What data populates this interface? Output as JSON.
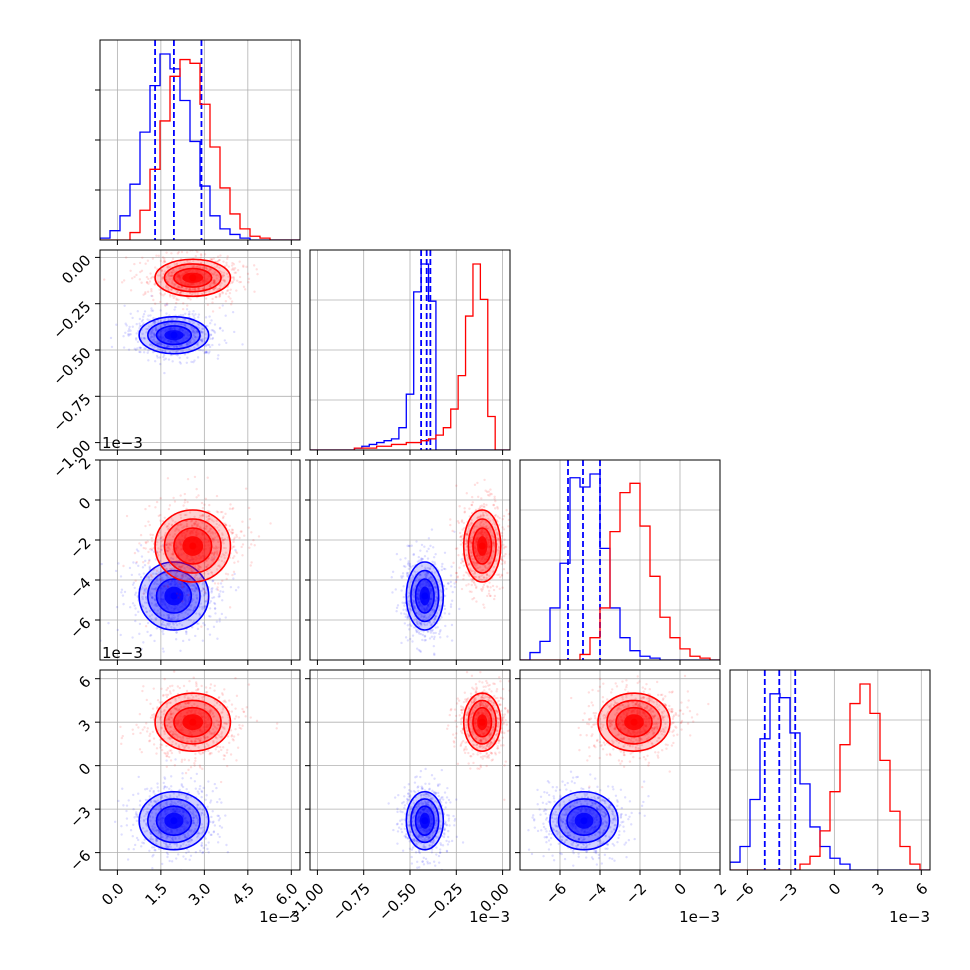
{
  "chart_data": {
    "type": "scatter",
    "title": "",
    "style": {
      "grid": true,
      "legend": "none"
    },
    "colors": {
      "series_a": "#0000ff",
      "series_b": "#ff0000"
    },
    "axes_scale_label": "1e−3",
    "parameters": [
      {
        "range": [
          -0.6,
          6.3
        ],
        "ticks": [
          0.0,
          1.5,
          3.0,
          4.5,
          6.0
        ],
        "labels": [
          "0.0",
          "1.5",
          "3.0",
          "4.5",
          "6.0"
        ]
      },
      {
        "range": [
          -1.04,
          0.04
        ],
        "ticks": [
          -1.0,
          -0.75,
          -0.5,
          -0.25,
          0.0
        ],
        "labels": [
          "−1.00",
          "−0.75",
          "−0.50",
          "−0.25",
          "0.00"
        ]
      },
      {
        "range": [
          -8.0,
          2.0
        ],
        "ticks": [
          -6,
          -4,
          -2,
          0,
          2
        ],
        "labels": [
          "−6",
          "−4",
          "−2",
          "0",
          "2"
        ]
      },
      {
        "range": [
          -7.2,
          6.6
        ],
        "ticks": [
          -6,
          -3,
          0,
          3,
          6
        ],
        "labels": [
          "−6",
          "−3",
          "0",
          "3",
          "6"
        ]
      }
    ],
    "series": [
      {
        "color": "#0000ff",
        "marginal_quantiles": [
          [
            1.3,
            1.95,
            2.9
          ],
          [
            -0.44,
            -0.41,
            -0.39
          ],
          [
            -5.6,
            -4.85,
            -4.0
          ],
          [
            -4.8,
            -3.8,
            -2.7
          ]
        ],
        "modes": [
          1.95,
          -0.42,
          -4.8,
          -3.8
        ],
        "spread": [
          0.6,
          0.05,
          0.85,
          1.0
        ],
        "histograms": [
          [
            0.01,
            0.05,
            0.13,
            0.3,
            0.58,
            0.83,
            1.0,
            0.92,
            0.75,
            0.53,
            0.29,
            0.13,
            0.06,
            0.03,
            0.01,
            0,
            0,
            0,
            0,
            0
          ],
          [
            0,
            0,
            0,
            0,
            0,
            0,
            0.01,
            0.02,
            0.03,
            0.04,
            0.05,
            0.06,
            0.12,
            0.3,
            0.85,
            1.0,
            0.8,
            0,
            0,
            0,
            0,
            0,
            0,
            0,
            0,
            0,
            0
          ],
          [
            0,
            0.04,
            0.1,
            0.28,
            0.52,
            0.98,
            0.93,
            1.0,
            0.6,
            0.28,
            0.12,
            0.05,
            0.02,
            0.01,
            0,
            0,
            0,
            0,
            0,
            0
          ],
          [
            0.04,
            0.12,
            0.36,
            0.67,
            0.9,
            0.88,
            0.7,
            0.44,
            0.22,
            0.12,
            0.06,
            0.03,
            0,
            0,
            0,
            0,
            0,
            0,
            0,
            0
          ]
        ]
      },
      {
        "color": "#ff0000",
        "marginal_quantiles": [],
        "modes": [
          2.6,
          -0.11,
          -2.3,
          3.0
        ],
        "spread": [
          0.65,
          0.05,
          0.9,
          1.0
        ],
        "histograms": [
          [
            0,
            0,
            0,
            0.04,
            0.16,
            0.38,
            0.64,
            0.88,
            0.97,
            0.95,
            0.73,
            0.5,
            0.28,
            0.14,
            0.06,
            0.02,
            0.01,
            0,
            0,
            0
          ],
          [
            0,
            0,
            0,
            0,
            0,
            0,
            0.01,
            0.01,
            0.01,
            0.02,
            0.02,
            0.03,
            0.03,
            0.04,
            0.04,
            0.05,
            0.06,
            0.08,
            0.12,
            0.22,
            0.4,
            0.72,
            1.0,
            0.81,
            0.18,
            0,
            0
          ],
          [
            0,
            0,
            0,
            0,
            0,
            0,
            0.03,
            0.12,
            0.28,
            0.69,
            0.9,
            0.95,
            0.72,
            0.45,
            0.23,
            0.12,
            0.06,
            0.02,
            0.01,
            0
          ],
          [
            0,
            0,
            0,
            0,
            0,
            0,
            0,
            0.03,
            0.07,
            0.2,
            0.4,
            0.64,
            0.85,
            0.95,
            0.8,
            0.56,
            0.3,
            0.12,
            0.03,
            0
          ]
        ]
      }
    ]
  }
}
